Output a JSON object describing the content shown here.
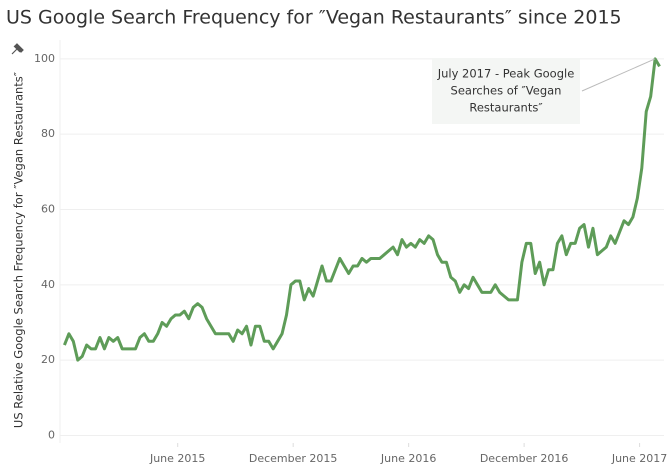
{
  "chart_data": {
    "type": "line",
    "title": "US Google Search Frequency for ″Vegan Restaurants″ since 2015",
    "y_label": "US Relative Google Search Frequency for ″Vegan Restaurants″",
    "annotation": [
      "July 2017 - Peak Google",
      "Searches of ″Vegan",
      "Restaurants″"
    ],
    "x": [
      0,
      1,
      2,
      3,
      4,
      5,
      6,
      7,
      8,
      9,
      10,
      11,
      12,
      13,
      14,
      15,
      16,
      17,
      18,
      19,
      20,
      21,
      22,
      23,
      24,
      25,
      26,
      27,
      28,
      29,
      30,
      31,
      32,
      33,
      34,
      35,
      36,
      37,
      38,
      39,
      40,
      41,
      42,
      43,
      44,
      45,
      46,
      47,
      48,
      49,
      50,
      51,
      52,
      53,
      54,
      55,
      56,
      57,
      58,
      59,
      60,
      61,
      62,
      63,
      64,
      65,
      66,
      67,
      68,
      69,
      70,
      71,
      72,
      73,
      74,
      75,
      76,
      77,
      78,
      79,
      80,
      81,
      82,
      83,
      84,
      85,
      86,
      87,
      88,
      89,
      90,
      91,
      92,
      93,
      94,
      95,
      96,
      97,
      98,
      99,
      100,
      101,
      102,
      103,
      104,
      105,
      106,
      107,
      108,
      109,
      110,
      111,
      112,
      113,
      114,
      115,
      116,
      117,
      118,
      119,
      120,
      121,
      122,
      123,
      124,
      125,
      126,
      127,
      128,
      129,
      130,
      131,
      132,
      133,
      134
    ],
    "series": [
      {
        "name": "Vegan Restaurants",
        "color": "#5e9c58",
        "values": [
          24,
          27,
          25,
          20,
          21,
          24,
          23,
          23,
          26,
          23,
          26,
          25,
          26,
          23,
          23,
          23,
          23,
          26,
          27,
          25,
          25,
          27,
          30,
          29,
          31,
          32,
          32,
          33,
          31,
          34,
          35,
          34,
          31,
          29,
          27,
          27,
          27,
          27,
          25,
          28,
          27,
          29,
          24,
          29,
          29,
          25,
          25,
          23,
          25,
          27,
          32,
          40,
          41,
          41,
          36,
          39,
          37,
          41,
          45,
          41,
          41,
          44,
          47,
          45,
          43,
          45,
          45,
          47,
          46,
          47,
          47,
          47,
          48,
          49,
          50,
          48,
          52,
          50,
          51,
          50,
          52,
          51,
          53,
          52,
          48,
          46,
          46,
          42,
          41,
          38,
          40,
          39,
          42,
          40,
          38,
          38,
          38,
          40,
          38,
          37,
          36,
          36,
          36,
          46,
          51,
          51,
          43,
          46,
          40,
          44,
          44,
          51,
          53,
          48,
          51,
          51,
          55,
          56,
          50,
          55,
          48,
          49,
          50,
          53,
          51,
          54,
          57,
          56,
          58,
          63,
          71,
          86,
          90,
          100,
          98
        ]
      }
    ],
    "xlim": [
      -1,
      135
    ],
    "xticks": [
      {
        "value": 25.5,
        "label": "June 2015"
      },
      {
        "value": 51.5,
        "label": "December 2015"
      },
      {
        "value": 77.5,
        "label": "June 2016"
      },
      {
        "value": 103.5,
        "label": "December 2016"
      },
      {
        "value": 129.5,
        "label": "June 2017"
      }
    ],
    "ylim": [
      -2,
      105
    ],
    "yticks": [
      0,
      20,
      40,
      60,
      80,
      100
    ],
    "grid": true
  }
}
